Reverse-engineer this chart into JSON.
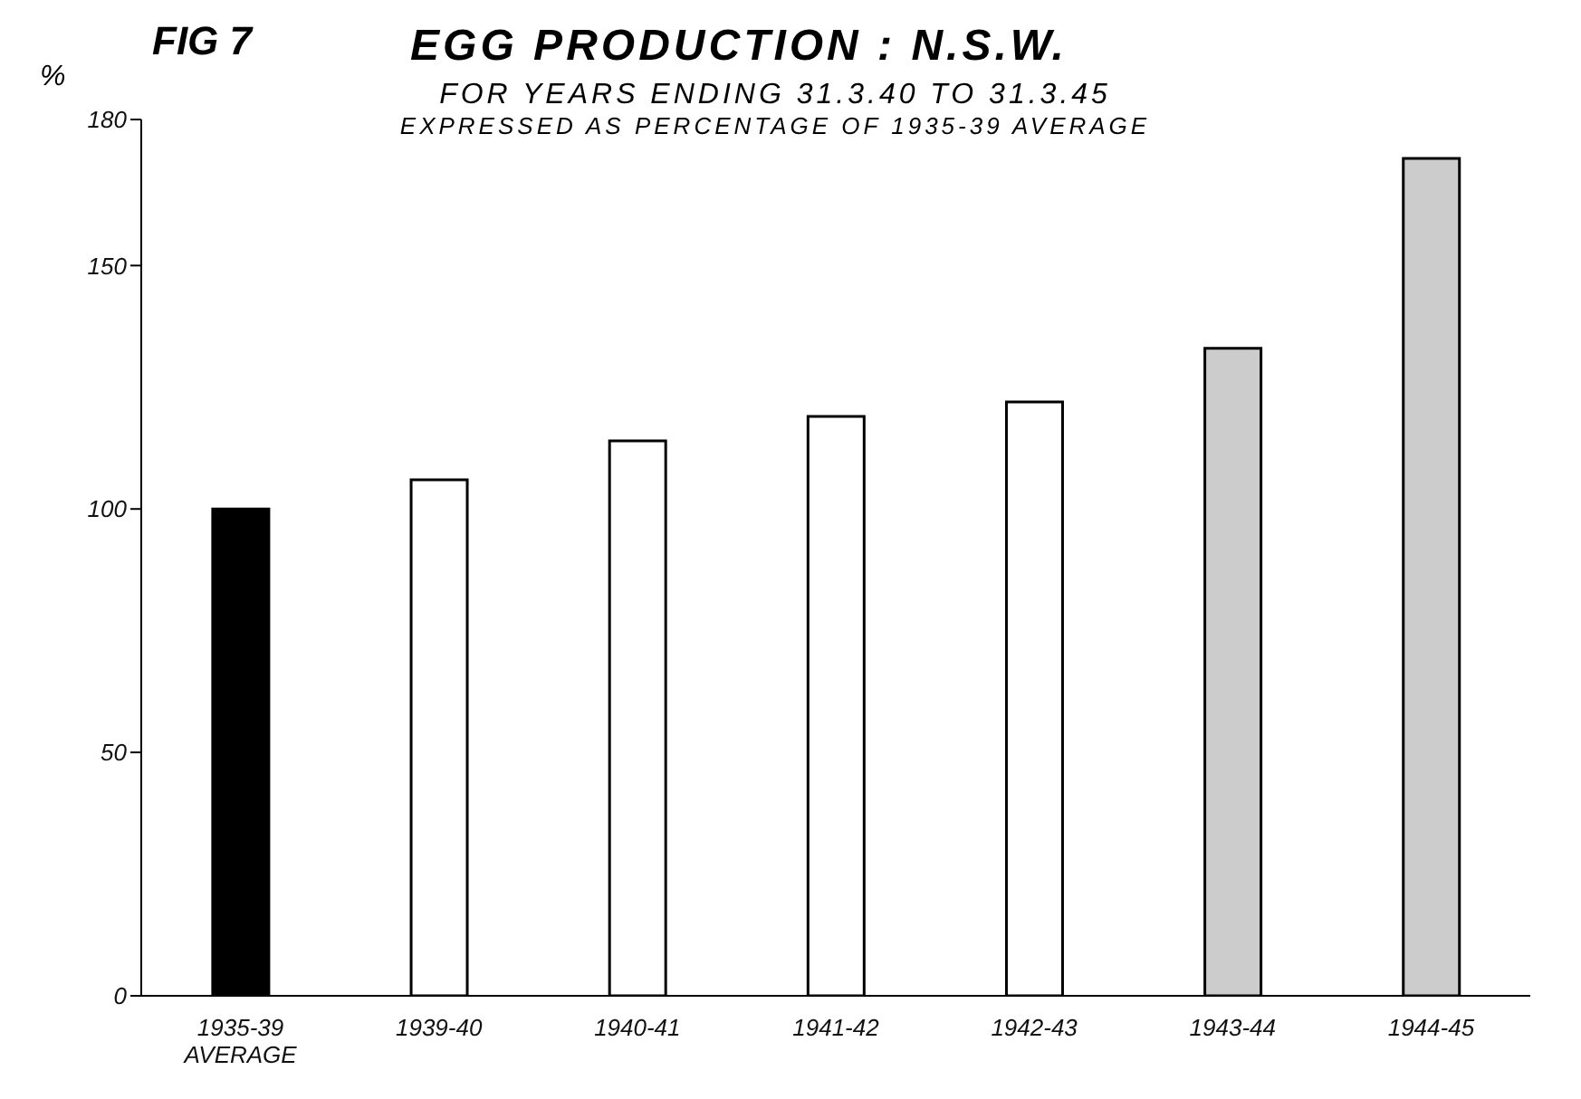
{
  "chart_data": {
    "type": "bar",
    "title": "EGG PRODUCTION : N.S.W.",
    "subtitle": "FOR YEARS ENDING 31.3.40 TO 31.3.45\nEXPRESSED AS PERCENTAGE OF 1935-39 AVERAGE",
    "annotations": [
      "FIG 7"
    ],
    "ylabel": "%",
    "categories": [
      "1935-39\nAVERAGE",
      "1939-40",
      "1940-41",
      "1941-42",
      "1942-43",
      "1943-44",
      "1944-45"
    ],
    "values": [
      100,
      106,
      114,
      119,
      122,
      133,
      172
    ],
    "colors": [
      "#000000",
      "#ffffff",
      "#ffffff",
      "#ffffff",
      "#ffffff",
      "#cccccc",
      "#cccccc"
    ],
    "ylim": [
      0,
      180
    ],
    "yticks": [
      0,
      50,
      100,
      150,
      180
    ],
    "grid": false,
    "legend": false
  }
}
